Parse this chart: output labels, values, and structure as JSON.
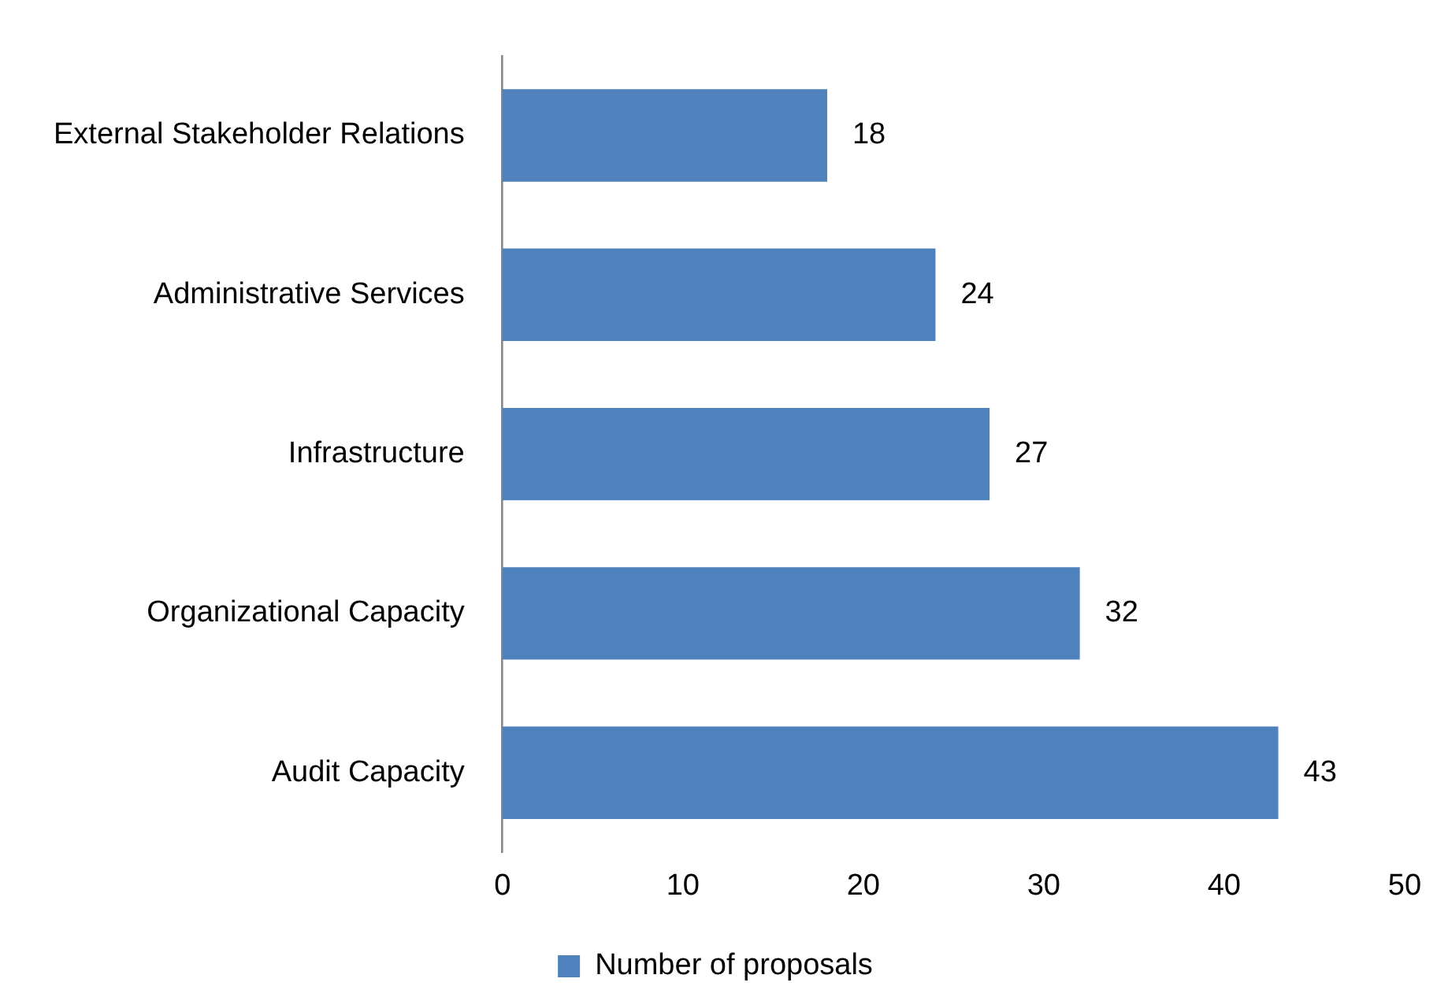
{
  "chart_data": {
    "type": "bar",
    "orientation": "horizontal",
    "categories": [
      "External Stakeholder Relations",
      "Administrative Services",
      "Infrastructure",
      "Organizational Capacity",
      "Audit Capacity"
    ],
    "series": [
      {
        "name": "Number of proposals",
        "color": "#4f81bd",
        "values": [
          18,
          24,
          27,
          32,
          43
        ]
      }
    ],
    "xlim": [
      0,
      50
    ],
    "xticks": [
      0,
      10,
      20,
      30,
      40,
      50
    ],
    "grid": false,
    "legend": "bottom",
    "data_labels": true
  }
}
